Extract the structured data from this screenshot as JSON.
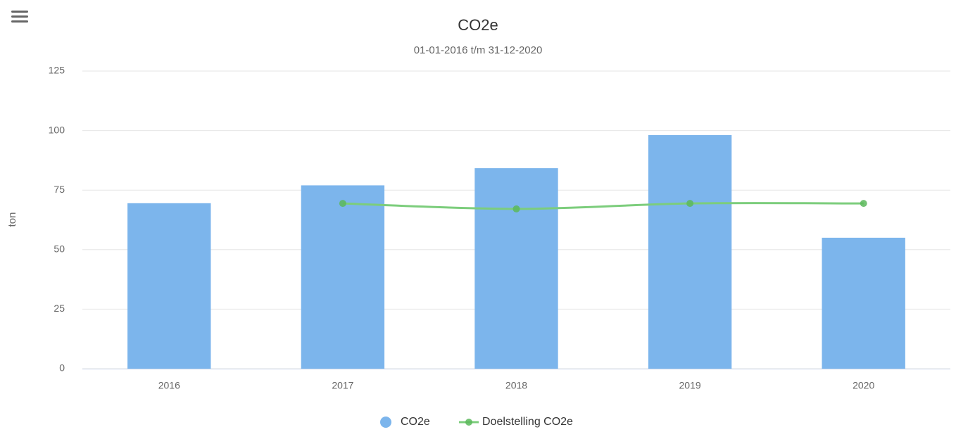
{
  "chart_data": {
    "type": "bar",
    "title": "CO2e",
    "subtitle": "01-01-2016 t/m 31-12-2020",
    "y_label": "ton",
    "categories": [
      "2016",
      "2017",
      "2018",
      "2019",
      "2020"
    ],
    "series": [
      {
        "name": "CO2e",
        "type": "bar",
        "color": "#7cb5ec",
        "values": [
          69.5,
          77,
          84.2,
          98.1,
          55
        ]
      },
      {
        "name": "Doelstelling CO2e",
        "type": "line",
        "color": "#7ccd7c",
        "values": [
          null,
          69.4,
          67.1,
          69.4,
          69.4
        ]
      }
    ],
    "ylim": [
      0,
      125
    ],
    "yticks": [
      0,
      25,
      50,
      75,
      100,
      125
    ],
    "grid": true,
    "legend": "bottom"
  }
}
